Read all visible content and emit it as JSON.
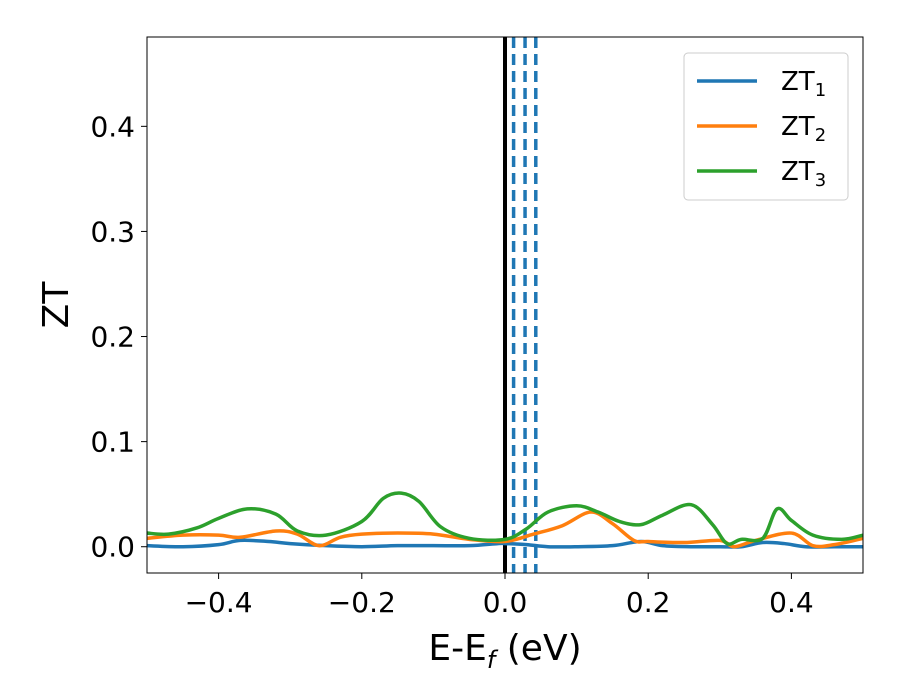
{
  "chart_data": {
    "type": "line",
    "title": "",
    "xlabel_main": "E-E",
    "xlabel_sub": "f",
    "xlabel_tail": " (eV)",
    "ylabel": "ZT",
    "xlim": [
      -0.5,
      0.5
    ],
    "ylim": [
      -0.025,
      0.485
    ],
    "grid": false,
    "legend_position": "top-right",
    "x_ticks": [
      -0.4,
      -0.2,
      0.0,
      0.2,
      0.4
    ],
    "x_tick_labels": [
      "−0.4",
      "−0.2",
      "0.0",
      "0.2",
      "0.4"
    ],
    "y_ticks": [
      0.0,
      0.1,
      0.2,
      0.3,
      0.4
    ],
    "y_tick_labels": [
      "0.0",
      "0.1",
      "0.2",
      "0.3",
      "0.4"
    ],
    "vertical_solid_line": {
      "x": 0.0,
      "color": "#000000"
    },
    "vertical_dashed_lines": {
      "x": [
        0.012,
        0.028,
        0.043
      ],
      "color": "#1f77b4"
    },
    "series": [
      {
        "name": "ZT",
        "name_sub": "1",
        "color": "#1f77b4",
        "x": [
          -0.5,
          -0.45,
          -0.4,
          -0.37,
          -0.33,
          -0.3,
          -0.25,
          -0.2,
          -0.15,
          -0.1,
          -0.05,
          -0.01,
          0.0,
          0.03,
          0.06,
          0.1,
          0.15,
          0.19,
          0.22,
          0.26,
          0.3,
          0.33,
          0.36,
          0.39,
          0.42,
          0.46,
          0.5
        ],
        "y": [
          0.001,
          0.0,
          0.002,
          0.006,
          0.005,
          0.003,
          0.001,
          0.0,
          0.001,
          0.001,
          0.001,
          0.003,
          0.003,
          0.002,
          0.0,
          0.0,
          0.001,
          0.005,
          0.001,
          0.0,
          0.0,
          0.0,
          0.004,
          0.003,
          0.0,
          0.0,
          0.0
        ]
      },
      {
        "name": "ZT",
        "name_sub": "2",
        "color": "#ff7f0e",
        "x": [
          -0.5,
          -0.45,
          -0.4,
          -0.37,
          -0.32,
          -0.29,
          -0.26,
          -0.23,
          -0.2,
          -0.15,
          -0.1,
          -0.05,
          0.0,
          0.04,
          0.08,
          0.12,
          0.15,
          0.18,
          0.2,
          0.25,
          0.3,
          0.32,
          0.35,
          0.4,
          0.43,
          0.46,
          0.5
        ],
        "y": [
          0.008,
          0.011,
          0.011,
          0.009,
          0.015,
          0.012,
          0.001,
          0.009,
          0.012,
          0.013,
          0.012,
          0.007,
          0.005,
          0.012,
          0.02,
          0.033,
          0.022,
          0.006,
          0.005,
          0.004,
          0.006,
          0.0,
          0.006,
          0.013,
          0.001,
          0.002,
          0.008
        ]
      },
      {
        "name": "ZT",
        "name_sub": "3",
        "color": "#2ca02c",
        "x": [
          -0.5,
          -0.47,
          -0.43,
          -0.4,
          -0.36,
          -0.32,
          -0.29,
          -0.25,
          -0.2,
          -0.17,
          -0.145,
          -0.12,
          -0.09,
          -0.05,
          0.0,
          0.03,
          0.06,
          0.1,
          0.13,
          0.16,
          0.19,
          0.22,
          0.26,
          0.29,
          0.31,
          0.33,
          0.36,
          0.38,
          0.4,
          0.43,
          0.47,
          0.5
        ],
        "y": [
          0.013,
          0.012,
          0.018,
          0.027,
          0.036,
          0.031,
          0.015,
          0.011,
          0.024,
          0.046,
          0.051,
          0.043,
          0.019,
          0.008,
          0.007,
          0.017,
          0.033,
          0.039,
          0.033,
          0.024,
          0.021,
          0.03,
          0.04,
          0.021,
          0.003,
          0.007,
          0.008,
          0.036,
          0.025,
          0.011,
          0.007,
          0.011
        ]
      }
    ]
  }
}
